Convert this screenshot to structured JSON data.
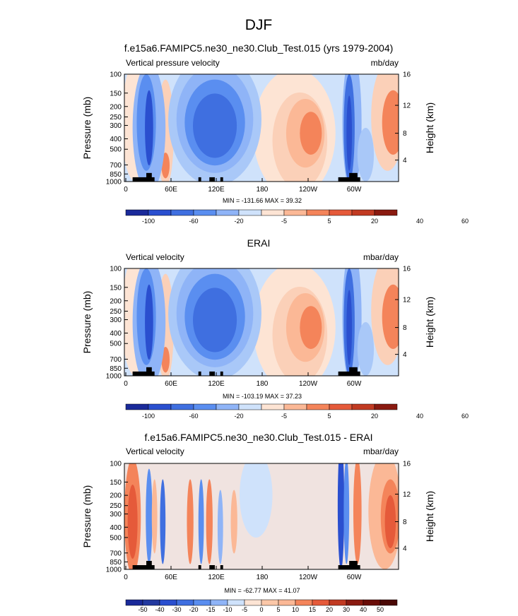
{
  "page": {
    "title": "DJF"
  },
  "colorbar_colors_11": [
    "#1a2a9a",
    "#2a4fcf",
    "#3f6fe0",
    "#5a8ef0",
    "#8fb4f7",
    "#cfe2fb",
    "#fde4d4",
    "#fbb896",
    "#f4845a",
    "#e55a3a",
    "#c13a22",
    "#8a1a10"
  ],
  "colorbar_colors_13": [
    "#1a2a9a",
    "#23399f",
    "#2a4fcf",
    "#3f6fe0",
    "#5a8ef0",
    "#8fb4f7",
    "#cfe2fb",
    "#fde4d4",
    "#fbc7a8",
    "#fbb896",
    "#f4845a",
    "#e55a3a",
    "#c13a22",
    "#8a1a10"
  ],
  "chart_data": [
    {
      "type": "heatmap",
      "title": "f.e15a6.FAMIPC5.ne30_ne30.Club_Test.015 (yrs 1979-2004)",
      "left_label": "Vertical pressure velocity",
      "right_label": "mb/day",
      "ylabel": "Pressure (mb)",
      "ylabel_right": "Height (km)",
      "x_tick_labels": [
        "0",
        "60E",
        "120E",
        "180",
        "120W",
        "60W"
      ],
      "y_ticks": [
        100,
        150,
        200,
        250,
        300,
        400,
        500,
        700,
        850,
        1000
      ],
      "y_right_ticks": [
        4,
        8,
        12,
        16
      ],
      "stats": "MIN = -131.66  MAX =  39.32",
      "colorbar_labels": [
        "-100",
        "-60",
        "-20",
        "-5",
        "5",
        "20",
        "40",
        "60"
      ]
    },
    {
      "type": "heatmap",
      "title": "ERAI",
      "left_label": "Vertical velocity",
      "right_label": "mbar/day",
      "ylabel": "Pressure (mb)",
      "ylabel_right": "Height (km)",
      "x_tick_labels": [
        "0",
        "60E",
        "120E",
        "180",
        "120W",
        "60W"
      ],
      "y_ticks": [
        100,
        150,
        200,
        250,
        300,
        400,
        500,
        700,
        850,
        1000
      ],
      "y_right_ticks": [
        4,
        8,
        12,
        16
      ],
      "stats": "MIN = -103.19  MAX =  37.23",
      "colorbar_labels": [
        "-100",
        "-60",
        "-20",
        "-5",
        "5",
        "20",
        "40",
        "60"
      ]
    },
    {
      "type": "heatmap",
      "title": "f.e15a6.FAMIPC5.ne30_ne30.Club_Test.015 - ERAI",
      "left_label": "Vertical velocity",
      "right_label": "mbar/day",
      "ylabel": "Pressure (mb)",
      "ylabel_right": "Height (km)",
      "x_tick_labels": [
        "0",
        "60E",
        "120E",
        "180",
        "120W",
        "60W"
      ],
      "y_ticks": [
        100,
        150,
        200,
        250,
        300,
        400,
        500,
        700,
        850,
        1000
      ],
      "y_right_ticks": [
        4,
        8,
        12,
        16
      ],
      "stats": "MIN = -62.77  MAX =  41.07",
      "colorbar_labels": [
        "-50",
        "-40",
        "-30",
        "-20",
        "-15",
        "-10",
        "-5",
        "0",
        "5",
        "10",
        "15",
        "20",
        "30",
        "40",
        "50"
      ]
    }
  ]
}
